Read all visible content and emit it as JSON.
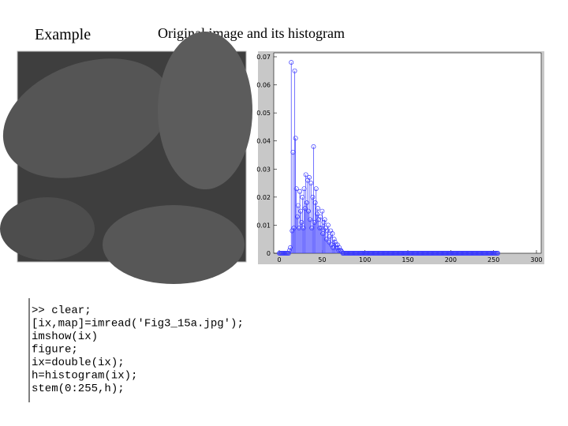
{
  "header": {
    "left": "Example",
    "title": "Original image and its histogram"
  },
  "code": {
    "lines": [
      ">> clear;",
      "[ix,map]=imread('Fig3_15a.jpg');",
      "imshow(ix)",
      "figure;",
      "ix=double(ix);",
      "h=histogram(ix);",
      "stem(0:255,h);"
    ]
  },
  "chart_data": {
    "type": "stem",
    "color": "#3a3aff",
    "x": [
      0,
      1,
      2,
      3,
      4,
      5,
      6,
      7,
      8,
      9,
      10,
      11,
      12,
      13,
      14,
      15,
      16,
      17,
      18,
      19,
      20,
      21,
      22,
      23,
      24,
      25,
      26,
      27,
      28,
      29,
      30,
      31,
      32,
      33,
      34,
      35,
      36,
      37,
      38,
      39,
      40,
      41,
      42,
      43,
      44,
      45,
      46,
      47,
      48,
      49,
      50,
      51,
      52,
      53,
      54,
      55,
      56,
      57,
      58,
      59,
      60,
      61,
      62,
      63,
      64,
      65,
      66,
      67,
      68,
      69,
      70,
      71,
      72,
      73,
      74,
      75,
      76,
      77,
      78,
      79,
      80,
      81,
      82,
      83,
      84,
      85,
      86,
      87,
      88,
      89,
      90,
      91,
      92,
      93,
      94,
      95,
      96,
      97,
      98,
      99,
      100,
      101,
      102,
      103,
      104,
      105,
      106,
      107,
      108,
      109,
      110,
      111,
      112,
      113,
      114,
      115,
      116,
      117,
      118,
      119,
      120,
      121,
      122,
      123,
      124,
      125,
      126,
      127,
      128,
      129,
      130,
      131,
      132,
      133,
      134,
      135,
      136,
      137,
      138,
      139,
      140,
      141,
      142,
      143,
      144,
      145,
      146,
      147,
      148,
      149,
      150,
      151,
      152,
      153,
      154,
      155,
      156,
      157,
      158,
      159,
      160,
      161,
      162,
      163,
      164,
      165,
      166,
      167,
      168,
      169,
      170,
      171,
      172,
      173,
      174,
      175,
      176,
      177,
      178,
      179,
      180,
      181,
      182,
      183,
      184,
      185,
      186,
      187,
      188,
      189,
      190,
      191,
      192,
      193,
      194,
      195,
      196,
      197,
      198,
      199,
      200,
      201,
      202,
      203,
      204,
      205,
      206,
      207,
      208,
      209,
      210,
      211,
      212,
      213,
      214,
      215,
      216,
      217,
      218,
      219,
      220,
      221,
      222,
      223,
      224,
      225,
      226,
      227,
      228,
      229,
      230,
      231,
      232,
      233,
      234,
      235,
      236,
      237,
      238,
      239,
      240,
      241,
      242,
      243,
      244,
      245,
      246,
      247,
      248,
      249,
      250,
      251,
      252,
      253,
      254,
      255
    ],
    "values": [
      0,
      0,
      0,
      0,
      0,
      0,
      0,
      0,
      0,
      0,
      0,
      0,
      0.001,
      0.002,
      0.068,
      0.008,
      0.036,
      0.009,
      0.065,
      0.041,
      0.023,
      0.013,
      0.017,
      0.009,
      0.022,
      0.015,
      0.011,
      0.02,
      0.009,
      0.023,
      0.016,
      0.028,
      0.018,
      0.026,
      0.015,
      0.027,
      0.012,
      0.025,
      0.009,
      0.02,
      0.038,
      0.011,
      0.018,
      0.023,
      0.014,
      0.016,
      0.012,
      0.009,
      0.013,
      0.009,
      0.015,
      0.007,
      0.011,
      0.012,
      0.009,
      0.005,
      0.008,
      0.01,
      0.004,
      0.006,
      0.008,
      0.003,
      0.007,
      0.002,
      0.005,
      0.004,
      0.003,
      0.002,
      0.003,
      0.001,
      0.002,
      0.001,
      0.001,
      0.0005,
      0,
      0,
      0,
      0,
      0,
      0,
      0,
      0,
      0,
      0,
      0,
      0,
      0,
      0,
      0,
      0,
      0,
      0,
      0,
      0,
      0,
      0,
      0,
      0,
      0,
      0,
      0,
      0,
      0,
      0,
      0,
      0,
      0,
      0,
      0,
      0,
      0,
      0,
      0,
      0,
      0,
      0,
      0,
      0,
      0,
      0,
      0,
      0,
      0,
      0,
      0,
      0,
      0,
      0,
      0,
      0,
      0,
      0,
      0,
      0,
      0,
      0,
      0,
      0,
      0,
      0,
      0,
      0,
      0,
      0,
      0,
      0,
      0,
      0,
      0,
      0,
      0,
      0,
      0,
      0,
      0,
      0,
      0,
      0,
      0,
      0,
      0,
      0,
      0,
      0,
      0,
      0,
      0,
      0,
      0,
      0,
      0,
      0,
      0,
      0,
      0,
      0,
      0,
      0,
      0,
      0,
      0,
      0,
      0,
      0,
      0,
      0,
      0,
      0,
      0,
      0,
      0,
      0,
      0,
      0,
      0,
      0,
      0,
      0,
      0,
      0,
      0,
      0,
      0,
      0,
      0,
      0,
      0,
      0,
      0,
      0,
      0,
      0,
      0,
      0,
      0,
      0,
      0,
      0,
      0,
      0,
      0,
      0,
      0,
      0,
      0,
      0,
      0,
      0,
      0,
      0,
      0,
      0,
      0,
      0,
      0,
      0,
      0,
      0,
      0,
      0,
      0,
      0,
      0,
      0,
      0,
      0,
      0,
      0,
      0,
      0,
      0,
      0,
      0,
      0,
      0,
      0
    ],
    "xlim": [
      0,
      300
    ],
    "xticks": [
      0,
      50,
      100,
      150,
      200,
      250,
      300
    ],
    "ylim": [
      0,
      0.0714
    ],
    "yticks": [
      0,
      0.01,
      0.02,
      0.03,
      0.04,
      0.05,
      0.06,
      0.07
    ]
  }
}
